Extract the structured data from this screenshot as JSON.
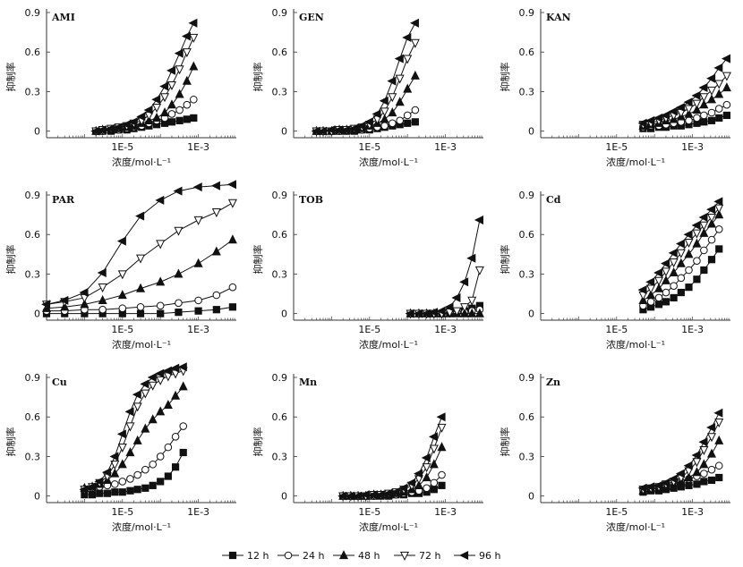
{
  "legend": {
    "items": [
      {
        "label": "12 h",
        "marker": "square",
        "fill": "#111111"
      },
      {
        "label": "24 h",
        "marker": "circle",
        "fill": "#ffffff"
      },
      {
        "label": "48 h",
        "marker": "triangle-up",
        "fill": "#111111"
      },
      {
        "label": "72 h",
        "marker": "triangle-down",
        "fill": "#ffffff"
      },
      {
        "label": "96 h",
        "marker": "triangle-left",
        "fill": "#111111"
      }
    ]
  },
  "chart_data": [
    {
      "type": "line",
      "title": "AMI",
      "xscale": "log",
      "xlim": [
        1e-07,
        0.01
      ],
      "ylim": [
        -0.05,
        0.9
      ],
      "xticks": [
        "1E-5",
        "1E-3"
      ],
      "yticks": [
        "0",
        "0.3",
        "0.6",
        "0.9"
      ],
      "xlabel": "浓度/mol·L⁻¹",
      "ylabel": "抑制率",
      "x": [
        2e-06,
        3e-06,
        5e-06,
        8e-06,
        1.3e-05,
        2e-05,
        3.2e-05,
        5e-05,
        8e-05,
        0.00013,
        0.0002,
        0.00032,
        0.0005,
        0.00075
      ],
      "series": [
        {
          "name": "12 h",
          "values": [
            0,
            0,
            0,
            0.01,
            0.01,
            0.02,
            0.03,
            0.04,
            0.05,
            0.06,
            0.07,
            0.08,
            0.09,
            0.1
          ]
        },
        {
          "name": "24 h",
          "values": [
            0,
            0,
            0.01,
            0.01,
            0.02,
            0.03,
            0.04,
            0.06,
            0.08,
            0.1,
            0.13,
            0.16,
            0.2,
            0.24
          ]
        },
        {
          "name": "48 h",
          "values": [
            0,
            0.01,
            0.01,
            0.02,
            0.03,
            0.04,
            0.06,
            0.08,
            0.1,
            0.14,
            0.2,
            0.28,
            0.38,
            0.49
          ]
        },
        {
          "name": "72 h",
          "values": [
            0,
            0.01,
            0.02,
            0.03,
            0.04,
            0.06,
            0.08,
            0.12,
            0.18,
            0.26,
            0.35,
            0.47,
            0.6,
            0.71
          ]
        },
        {
          "name": "96 h",
          "values": [
            0,
            0.01,
            0.02,
            0.03,
            0.05,
            0.07,
            0.11,
            0.16,
            0.24,
            0.34,
            0.46,
            0.59,
            0.72,
            0.82
          ]
        }
      ]
    },
    {
      "type": "line",
      "title": "GEN",
      "xscale": "log",
      "xlim": [
        1e-07,
        0.01
      ],
      "ylim": [
        -0.05,
        0.9
      ],
      "xticks": [
        "1E-5",
        "1E-3"
      ],
      "yticks": [
        "0",
        "0.3",
        "0.6",
        "0.9"
      ],
      "xlabel": "浓度/mol·L⁻¹",
      "ylabel": "抑制率",
      "x": [
        4e-07,
        6e-07,
        1e-06,
        1.6e-06,
        2.5e-06,
        4e-06,
        6.3e-06,
        1e-05,
        1.6e-05,
        2.5e-05,
        4e-05,
        6.3e-05,
        0.0001,
        0.00016
      ],
      "series": [
        {
          "name": "12 h",
          "values": [
            0,
            0,
            0,
            0,
            0,
            0,
            0.01,
            0.01,
            0.02,
            0.03,
            0.04,
            0.05,
            0.06,
            0.07
          ]
        },
        {
          "name": "24 h",
          "values": [
            0,
            0,
            0,
            0,
            0.01,
            0.01,
            0.01,
            0.02,
            0.03,
            0.04,
            0.06,
            0.08,
            0.12,
            0.16
          ]
        },
        {
          "name": "48 h",
          "values": [
            0,
            0,
            0,
            0.01,
            0.01,
            0.01,
            0.02,
            0.04,
            0.06,
            0.09,
            0.14,
            0.22,
            0.32,
            0.42
          ]
        },
        {
          "name": "72 h",
          "values": [
            0,
            0,
            0,
            0.01,
            0.01,
            0.02,
            0.03,
            0.05,
            0.09,
            0.15,
            0.26,
            0.4,
            0.55,
            0.67
          ]
        },
        {
          "name": "96 h",
          "values": [
            0,
            0,
            0.01,
            0.01,
            0.01,
            0.02,
            0.04,
            0.07,
            0.13,
            0.23,
            0.38,
            0.55,
            0.71,
            0.82
          ]
        }
      ]
    },
    {
      "type": "line",
      "title": "KAN",
      "xscale": "log",
      "xlim": [
        1e-07,
        0.01
      ],
      "ylim": [
        -0.05,
        0.9
      ],
      "xticks": [
        "1E-5",
        "1E-3"
      ],
      "yticks": [
        "0",
        "0.3",
        "0.6",
        "0.9"
      ],
      "xlabel": "浓度/mol·L⁻¹",
      "ylabel": "抑制率",
      "x": [
        5e-05,
        8e-05,
        0.00013,
        0.0002,
        0.00032,
        0.0005,
        0.0008,
        0.0013,
        0.002,
        0.0032,
        0.005,
        0.008
      ],
      "series": [
        {
          "name": "12 h",
          "values": [
            0.02,
            0.02,
            0.03,
            0.03,
            0.04,
            0.04,
            0.05,
            0.06,
            0.07,
            0.08,
            0.1,
            0.12
          ]
        },
        {
          "name": "24 h",
          "values": [
            0.03,
            0.04,
            0.04,
            0.05,
            0.06,
            0.07,
            0.08,
            0.1,
            0.12,
            0.14,
            0.17,
            0.2
          ]
        },
        {
          "name": "48 h",
          "values": [
            0.04,
            0.05,
            0.06,
            0.08,
            0.09,
            0.11,
            0.13,
            0.16,
            0.2,
            0.24,
            0.28,
            0.33
          ]
        },
        {
          "name": "72 h",
          "values": [
            0.05,
            0.06,
            0.08,
            0.1,
            0.12,
            0.14,
            0.17,
            0.21,
            0.26,
            0.31,
            0.36,
            0.42
          ]
        },
        {
          "name": "96 h",
          "values": [
            0.06,
            0.08,
            0.1,
            0.12,
            0.15,
            0.18,
            0.22,
            0.27,
            0.33,
            0.4,
            0.48,
            0.55
          ]
        }
      ]
    },
    {
      "type": "line",
      "title": "PAR",
      "xscale": "log",
      "xlim": [
        1e-07,
        0.01
      ],
      "ylim": [
        -0.05,
        0.9
      ],
      "xticks": [
        "1E-5",
        "1E-3"
      ],
      "yticks": [
        "0",
        "0.3",
        "0.6",
        "0.9"
      ],
      "xlabel": "浓度/mol·L⁻¹",
      "ylabel": "抑制率",
      "x": [
        1e-07,
        3e-07,
        1e-06,
        3e-06,
        1e-05,
        3e-05,
        0.0001,
        0.0003,
        0.001,
        0.003,
        0.008
      ],
      "series": [
        {
          "name": "12 h",
          "values": [
            0,
            0,
            0,
            0,
            0,
            0,
            0,
            0.01,
            0.02,
            0.03,
            0.05
          ]
        },
        {
          "name": "24 h",
          "values": [
            0.02,
            0.02,
            0.03,
            0.03,
            0.04,
            0.05,
            0.06,
            0.08,
            0.1,
            0.14,
            0.2
          ]
        },
        {
          "name": "48 h",
          "values": [
            0.04,
            0.05,
            0.07,
            0.1,
            0.14,
            0.19,
            0.24,
            0.3,
            0.38,
            0.47,
            0.56
          ]
        },
        {
          "name": "72 h",
          "values": [
            0.07,
            0.09,
            0.12,
            0.2,
            0.3,
            0.42,
            0.53,
            0.63,
            0.71,
            0.77,
            0.84
          ]
        },
        {
          "name": "96 h",
          "values": [
            0.07,
            0.1,
            0.16,
            0.31,
            0.55,
            0.74,
            0.86,
            0.93,
            0.96,
            0.97,
            0.98
          ]
        }
      ]
    },
    {
      "type": "line",
      "title": "TOB",
      "xscale": "log",
      "xlim": [
        1e-07,
        0.01
      ],
      "ylim": [
        -0.05,
        0.9
      ],
      "xticks": [
        "1E-5",
        "1E-3"
      ],
      "yticks": [
        "0",
        "0.3",
        "0.6",
        "0.9"
      ],
      "xlabel": "浓度/mol·L⁻¹",
      "ylabel": "抑制率",
      "x": [
        0.00012,
        0.0002,
        0.00032,
        0.0005,
        0.0008,
        0.0013,
        0.002,
        0.0032,
        0.005,
        0.008
      ],
      "series": [
        {
          "name": "12 h",
          "values": [
            0,
            0,
            0,
            0,
            0,
            0.01,
            0.01,
            0.02,
            0.04,
            0.06
          ]
        },
        {
          "name": "24 h",
          "values": [
            0,
            0,
            0,
            0,
            0,
            0,
            0.01,
            0.01,
            0.02,
            0.03
          ]
        },
        {
          "name": "48 h",
          "values": [
            0,
            0,
            0,
            0,
            0,
            0,
            0,
            0,
            0,
            0
          ]
        },
        {
          "name": "72 h",
          "values": [
            0,
            0,
            0,
            0,
            0,
            0.01,
            0.02,
            0.05,
            0.1,
            0.33
          ]
        },
        {
          "name": "96 h",
          "values": [
            0,
            0,
            0,
            0.01,
            0.02,
            0.05,
            0.12,
            0.24,
            0.42,
            0.71
          ]
        }
      ]
    },
    {
      "type": "line",
      "title": "Cd",
      "xscale": "log",
      "xlim": [
        1e-07,
        0.01
      ],
      "ylim": [
        -0.05,
        0.9
      ],
      "xticks": [
        "1E-5",
        "1E-3"
      ],
      "yticks": [
        "0",
        "0.3",
        "0.6",
        "0.9"
      ],
      "xlabel": "浓度/mol·L⁻¹",
      "ylabel": "抑制率",
      "x": [
        5e-05,
        8e-05,
        0.00013,
        0.0002,
        0.00032,
        0.0005,
        0.0008,
        0.0013,
        0.002,
        0.0032,
        0.005
      ],
      "series": [
        {
          "name": "12 h",
          "values": [
            0.03,
            0.05,
            0.07,
            0.09,
            0.12,
            0.16,
            0.2,
            0.26,
            0.33,
            0.41,
            0.49
          ]
        },
        {
          "name": "24 h",
          "values": [
            0.06,
            0.09,
            0.12,
            0.16,
            0.21,
            0.27,
            0.33,
            0.4,
            0.48,
            0.56,
            0.64
          ]
        },
        {
          "name": "48 h",
          "values": [
            0.1,
            0.14,
            0.19,
            0.25,
            0.31,
            0.38,
            0.45,
            0.53,
            0.61,
            0.68,
            0.75
          ]
        },
        {
          "name": "72 h",
          "values": [
            0.14,
            0.19,
            0.25,
            0.32,
            0.39,
            0.46,
            0.54,
            0.61,
            0.67,
            0.73,
            0.8
          ]
        },
        {
          "name": "96 h",
          "values": [
            0.18,
            0.24,
            0.31,
            0.38,
            0.46,
            0.53,
            0.6,
            0.67,
            0.73,
            0.79,
            0.85
          ]
        }
      ]
    },
    {
      "type": "line",
      "title": "Cu",
      "xscale": "log",
      "xlim": [
        1e-07,
        0.01
      ],
      "ylim": [
        -0.05,
        0.9
      ],
      "xticks": [
        "1E-5",
        "1E-3"
      ],
      "yticks": [
        "0",
        "0.3",
        "0.6",
        "0.9"
      ],
      "xlabel": "浓度/mol·L⁻¹",
      "ylabel": "抑制率",
      "x": [
        1e-06,
        1.6e-06,
        2.5e-06,
        4e-06,
        6.3e-06,
        1e-05,
        1.6e-05,
        2.5e-05,
        4e-05,
        6.3e-05,
        0.0001,
        0.00016,
        0.00025,
        0.0004
      ],
      "series": [
        {
          "name": "12 h",
          "values": [
            0.01,
            0.01,
            0.02,
            0.02,
            0.03,
            0.03,
            0.04,
            0.05,
            0.06,
            0.08,
            0.11,
            0.15,
            0.22,
            0.33
          ]
        },
        {
          "name": "24 h",
          "values": [
            0.05,
            0.06,
            0.07,
            0.08,
            0.09,
            0.11,
            0.13,
            0.16,
            0.2,
            0.24,
            0.3,
            0.37,
            0.45,
            0.53
          ]
        },
        {
          "name": "48 h",
          "values": [
            0.06,
            0.07,
            0.09,
            0.12,
            0.17,
            0.24,
            0.33,
            0.42,
            0.51,
            0.58,
            0.64,
            0.69,
            0.76,
            0.83
          ]
        },
        {
          "name": "72 h",
          "values": [
            0.05,
            0.07,
            0.1,
            0.15,
            0.24,
            0.37,
            0.53,
            0.68,
            0.78,
            0.84,
            0.88,
            0.91,
            0.93,
            0.95
          ]
        },
        {
          "name": "96 h",
          "values": [
            0.05,
            0.07,
            0.11,
            0.18,
            0.3,
            0.47,
            0.64,
            0.77,
            0.85,
            0.9,
            0.93,
            0.95,
            0.97,
            0.98
          ]
        }
      ]
    },
    {
      "type": "line",
      "title": "Mn",
      "xscale": "log",
      "xlim": [
        1e-07,
        0.01
      ],
      "ylim": [
        -0.05,
        0.9
      ],
      "xticks": [
        "1E-5",
        "1E-3"
      ],
      "yticks": [
        "0",
        "0.3",
        "0.6",
        "0.9"
      ],
      "xlabel": "浓度/mol·L⁻¹",
      "ylabel": "抑制率",
      "x": [
        2e-06,
        3.2e-06,
        5e-06,
        8e-06,
        1.3e-05,
        2e-05,
        3.2e-05,
        5e-05,
        8e-05,
        0.00013,
        0.0002,
        0.00032,
        0.0005,
        0.0008
      ],
      "series": [
        {
          "name": "12 h",
          "values": [
            0,
            0,
            0,
            0,
            0,
            0,
            0,
            0.01,
            0.01,
            0.02,
            0.02,
            0.03,
            0.05,
            0.08
          ]
        },
        {
          "name": "24 h",
          "values": [
            0,
            0,
            0,
            0,
            0,
            0.01,
            0.01,
            0.01,
            0.02,
            0.03,
            0.04,
            0.06,
            0.1,
            0.16
          ]
        },
        {
          "name": "48 h",
          "values": [
            0,
            0,
            0,
            0,
            0.01,
            0.01,
            0.01,
            0.02,
            0.03,
            0.05,
            0.08,
            0.14,
            0.24,
            0.37
          ]
        },
        {
          "name": "72 h",
          "values": [
            0,
            0,
            0,
            0,
            0.01,
            0.01,
            0.02,
            0.03,
            0.05,
            0.08,
            0.13,
            0.22,
            0.36,
            0.52
          ]
        },
        {
          "name": "96 h",
          "values": [
            0,
            0,
            0,
            0.01,
            0.01,
            0.01,
            0.02,
            0.03,
            0.06,
            0.1,
            0.17,
            0.29,
            0.45,
            0.6
          ]
        }
      ]
    },
    {
      "type": "line",
      "title": "Zn",
      "xscale": "log",
      "xlim": [
        1e-07,
        0.01
      ],
      "ylim": [
        -0.05,
        0.9
      ],
      "xticks": [
        "1E-5",
        "1E-3"
      ],
      "yticks": [
        "0",
        "0.3",
        "0.6",
        "0.9"
      ],
      "xlabel": "浓度/mol·L⁻¹",
      "ylabel": "抑制率",
      "x": [
        5e-05,
        8e-05,
        0.00013,
        0.0002,
        0.00032,
        0.0005,
        0.0008,
        0.0013,
        0.002,
        0.0032,
        0.005
      ],
      "series": [
        {
          "name": "12 h",
          "values": [
            0.03,
            0.04,
            0.04,
            0.05,
            0.06,
            0.07,
            0.08,
            0.09,
            0.11,
            0.12,
            0.14
          ]
        },
        {
          "name": "24 h",
          "values": [
            0.05,
            0.06,
            0.07,
            0.08,
            0.09,
            0.11,
            0.13,
            0.15,
            0.17,
            0.2,
            0.23
          ]
        },
        {
          "name": "48 h",
          "values": [
            0.04,
            0.05,
            0.06,
            0.07,
            0.09,
            0.11,
            0.14,
            0.18,
            0.24,
            0.32,
            0.42
          ]
        },
        {
          "name": "72 h",
          "values": [
            0.05,
            0.06,
            0.07,
            0.09,
            0.11,
            0.14,
            0.19,
            0.26,
            0.35,
            0.45,
            0.56
          ]
        },
        {
          "name": "96 h",
          "values": [
            0.06,
            0.07,
            0.08,
            0.1,
            0.13,
            0.17,
            0.23,
            0.31,
            0.41,
            0.52,
            0.63
          ]
        }
      ]
    }
  ]
}
